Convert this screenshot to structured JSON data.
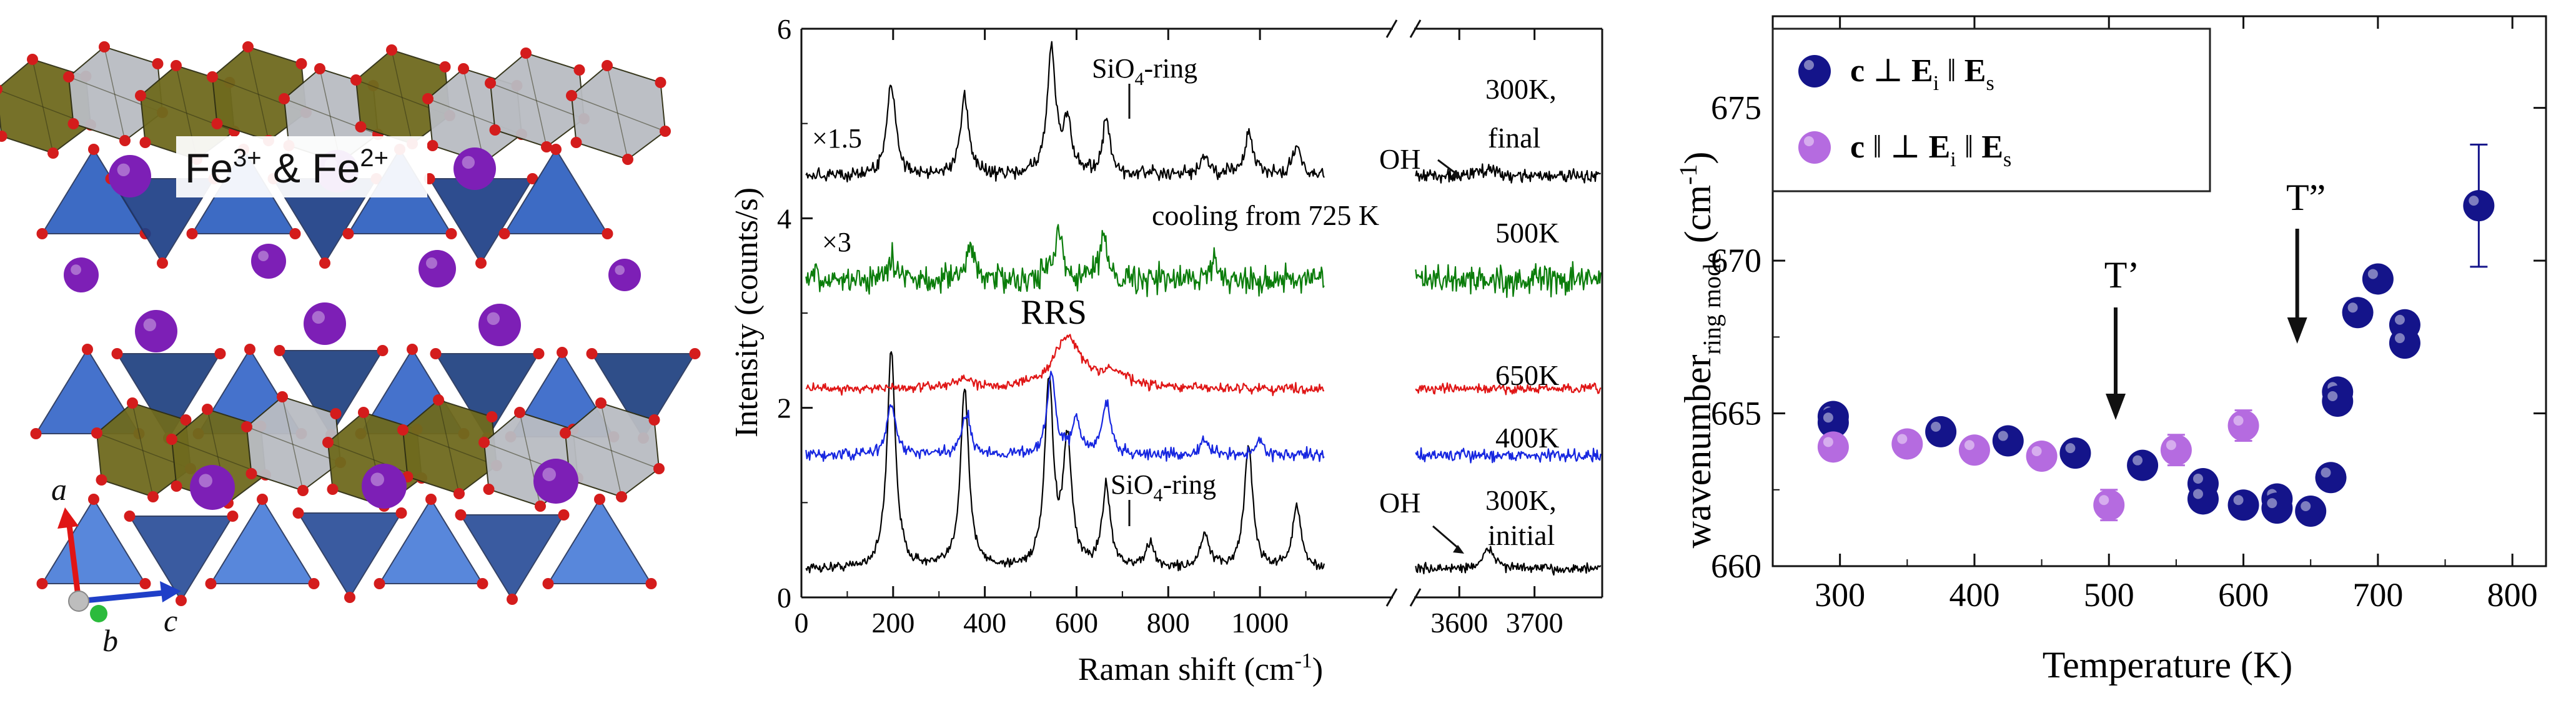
{
  "crystal": {
    "label_main": "Fe",
    "label_sup1": "3+",
    "label_amp": " & Fe",
    "label_sup2": "2+",
    "axis_a": "a",
    "axis_b": "b",
    "axis_c": "c"
  },
  "colors": {
    "polyhedron_olive": "#6f6a1e",
    "polyhedron_blue": "#2f5fb8",
    "polyhedron_grey": "#b9bcc2",
    "atom_purple": "#7d1fb6",
    "atom_red": "#d41c1c",
    "raman_300K": "#000000",
    "raman_500K": "#0b7d0b",
    "raman_650K": "#e01616",
    "raman_400K": "#1626e0",
    "series_perp": "#14148a",
    "series_par": "#b56be0"
  },
  "chart_data": [
    {
      "type": "line",
      "title": "",
      "xlabel": "Raman shift (cm",
      "xlabel_sup": "-1",
      "xlabel_end": ")",
      "ylabel": "Intensity (counts/s)",
      "ylim": [
        0,
        6
      ],
      "yticks": [
        0,
        2,
        4,
        6
      ],
      "x_segments": [
        {
          "range": [
            0,
            1150
          ],
          "ticks": [
            0,
            200,
            400,
            600,
            800,
            1000
          ]
        },
        {
          "range": [
            3540,
            3790
          ],
          "ticks": [
            3600,
            3700
          ]
        }
      ],
      "series": [
        {
          "name": "300K, initial",
          "label_line1": "300K,",
          "label_line2": "initial",
          "color": "#000000",
          "baseline": 0.3,
          "scale": 1,
          "noise": 0.05,
          "peaks": [
            [
              196,
              2.3
            ],
            [
              356,
              1.9
            ],
            [
              540,
              1.95
            ],
            [
              580,
              1.3
            ],
            [
              665,
              0.85
            ],
            [
              760,
              0.25
            ],
            [
              880,
              0.35
            ],
            [
              975,
              1.3
            ],
            [
              1080,
              0.65
            ]
          ],
          "oh_peaks": [
            [
              3640,
              0.2
            ]
          ]
        },
        {
          "name": "400K",
          "label_line1": "400K",
          "color": "#1626e0",
          "baseline": 1.5,
          "scale": 1,
          "noise": 0.06,
          "peaks": [
            [
              196,
              0.55
            ],
            [
              360,
              0.45
            ],
            [
              545,
              0.85
            ],
            [
              600,
              0.35
            ],
            [
              665,
              0.55
            ],
            [
              880,
              0.15
            ],
            [
              1000,
              0.15
            ]
          ],
          "oh_peaks": []
        },
        {
          "name": "650K",
          "label_line1": "650K",
          "color": "#e01616",
          "baseline": 2.2,
          "scale": 1,
          "noise": 0.05,
          "peaks": [
            [
              350,
              0.08
            ],
            [
              580,
              0.55
            ],
            [
              680,
              0.15
            ]
          ],
          "oh_peaks": []
        },
        {
          "name": "500K",
          "label_line1": "500K",
          "color": "#0b7d0b",
          "baseline": 3.35,
          "scale": 3,
          "noise": 0.14,
          "peaks": [
            [
              200,
              0.2
            ],
            [
              370,
              0.35
            ],
            [
              560,
              0.55
            ],
            [
              660,
              0.45
            ],
            [
              900,
              0.2
            ]
          ],
          "oh_peaks": []
        },
        {
          "name": "300K, final",
          "label_line1": "300K,",
          "label_line2": "final",
          "color": "#000000",
          "baseline": 4.45,
          "scale": 1.5,
          "noise": 0.07,
          "peaks": [
            [
              196,
              1.0
            ],
            [
              356,
              0.85
            ],
            [
              545,
              1.3
            ],
            [
              580,
              0.55
            ],
            [
              665,
              0.55
            ],
            [
              880,
              0.2
            ],
            [
              975,
              0.45
            ],
            [
              1080,
              0.3
            ]
          ],
          "oh_peaks": [
            [
              3640,
              0.08
            ]
          ]
        }
      ],
      "annotations": {
        "scale_final": "×1.5",
        "scale_500": "×3",
        "cooling": "cooling from 725 K",
        "rrs": "RRS",
        "sio4_prefix": "SiO",
        "sio4_sub": "4",
        "sio4_suffix": "-ring",
        "oh": "OH"
      }
    },
    {
      "type": "scatter",
      "title": "",
      "xlabel": "Temperature (K)",
      "ylabel_main": "wavenumber",
      "ylabel_sub": "ring mode",
      "ylabel_unit": " (cm",
      "ylabel_sup": "-1",
      "ylabel_end": ")",
      "xlim": [
        250,
        825
      ],
      "ylim": [
        660,
        678
      ],
      "xticks": [
        300,
        400,
        500,
        600,
        700,
        800
      ],
      "yticks": [
        660,
        665,
        670,
        675
      ],
      "legend": {
        "placement": "top-left",
        "entries": [
          {
            "c": "c",
            "rel": " ⊥ ",
            "E1": "E",
            "s1": "i",
            "rel2": " ‖ ",
            "E2": "E",
            "s2": "s"
          },
          {
            "c": "c",
            "rel": " ‖ ⊥ ",
            "E1": "E",
            "s1": "i",
            "rel2": " ‖ ",
            "E2": "E",
            "s2": "s"
          }
        ]
      },
      "series": [
        {
          "name": "c perp Ei || Es",
          "color": "#14148a",
          "points": [
            [
              295,
              664.9
            ],
            [
              295,
              664.7
            ],
            [
              375,
              664.4
            ],
            [
              425,
              664.1
            ],
            [
              475,
              663.7
            ],
            [
              525,
              663.3
            ],
            [
              570,
              662.7
            ],
            [
              570,
              662.2
            ],
            [
              600,
              662.0
            ],
            [
              625,
              662.2
            ],
            [
              625,
              661.9
            ],
            [
              650,
              661.8
            ],
            [
              665,
              662.9
            ],
            [
              670,
              665.7
            ],
            [
              670,
              665.4
            ],
            [
              685,
              668.3
            ],
            [
              700,
              669.4
            ],
            [
              720,
              667.9
            ],
            [
              720,
              667.3
            ],
            [
              775,
              671.8
            ]
          ],
          "error_bars": [
            [
              775,
              671.8,
              2.0
            ]
          ]
        },
        {
          "name": "c || perp Ei || Es",
          "color": "#b56be0",
          "points": [
            [
              295,
              663.9
            ],
            [
              350,
              664.0
            ],
            [
              400,
              663.8
            ],
            [
              450,
              663.6
            ],
            [
              500,
              662.0
            ],
            [
              550,
              663.8
            ],
            [
              600,
              664.6
            ]
          ],
          "error_bars": [
            [
              500,
              662.0,
              0.5
            ],
            [
              550,
              663.8,
              0.5
            ],
            [
              600,
              664.6,
              0.5
            ]
          ]
        }
      ],
      "annotations": {
        "t1": "T’",
        "t1_x": 505,
        "t2": "T”",
        "t2_x": 640
      }
    }
  ]
}
